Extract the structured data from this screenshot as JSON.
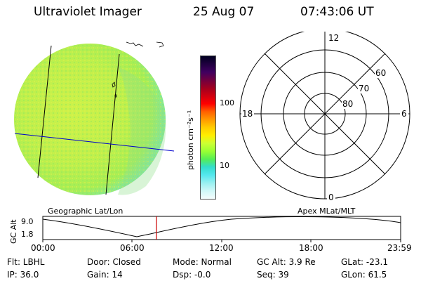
{
  "header": {
    "instrument": "Ultraviolet Imager",
    "date": "25 Aug 07",
    "time": "07:43:06 UT"
  },
  "colorbar": {
    "label": "photon cm⁻²s⁻¹",
    "ticks": [
      "100",
      "10"
    ],
    "colors": [
      "#000020",
      "#200040",
      "#400060",
      "#700040",
      "#a00020",
      "#d00010",
      "#ff0000",
      "#ff6000",
      "#ff9900",
      "#ffcc00",
      "#ffee00",
      "#ccff33",
      "#99ff33",
      "#55ee55",
      "#33ddcc",
      "#55e8ee",
      "#99f0f0",
      "#d0f8f8",
      "#f4fcfc"
    ]
  },
  "polar_plot": {
    "mlt_labels": [
      "12",
      "18",
      "6",
      "0"
    ],
    "mlat_labels": [
      "60",
      "70",
      "80"
    ]
  },
  "captions": {
    "left": "Geographic Lat/Lon",
    "right": "Apex MLat/MLT"
  },
  "altitude_plot": {
    "ylabel": "GC Alt",
    "yticks": [
      "9.0",
      "1.8"
    ],
    "xticks": [
      "00:00",
      "06:00",
      "12:00",
      "18:00",
      "23:59"
    ],
    "current_time_marker": "07:43"
  },
  "info": {
    "flt": "Flt: LBHL",
    "ip": "IP: 36.0",
    "door": "Door: Closed",
    "gain": "Gain: 14",
    "mode": "Mode: Normal",
    "dsp": "Dsp:    -0.0",
    "gc_alt": "GC Alt: 3.9 Re",
    "seq": "Seq: 39",
    "glat": "GLat: -23.1",
    "glon": "GLon:  61.5"
  }
}
